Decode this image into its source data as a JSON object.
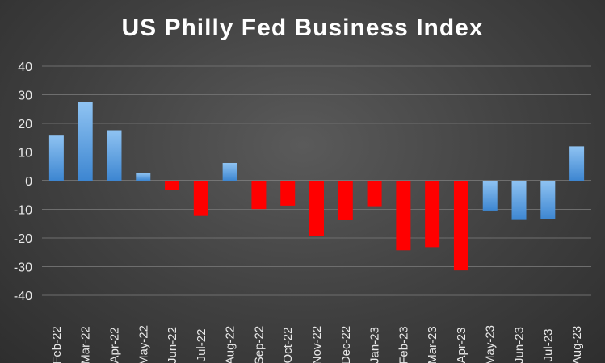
{
  "chart_data": {
    "type": "bar",
    "title": "US Philly Fed Business Index",
    "xlabel": "",
    "ylabel": "",
    "ylim": [
      -40,
      40
    ],
    "yticks": [
      40,
      30,
      20,
      10,
      0,
      -10,
      -20,
      -30,
      -40
    ],
    "grid": true,
    "legend": "none",
    "categories": [
      "Feb-22",
      "Mar-22",
      "Apr-22",
      "May-22",
      "Jun-22",
      "Jul-22",
      "Aug-22",
      "Sep-22",
      "Oct-22",
      "Nov-22",
      "Dec-22",
      "Jan-23",
      "Feb-23",
      "Mar-23",
      "Apr-23",
      "May-23",
      "Jun-23",
      "Jul-23",
      "Aug-23"
    ],
    "values": [
      16.0,
      27.4,
      17.6,
      2.6,
      -3.3,
      -12.3,
      6.2,
      -9.9,
      -8.7,
      -19.4,
      -13.8,
      -8.9,
      -24.3,
      -23.2,
      -31.3,
      -10.4,
      -13.7,
      -13.5,
      12.0
    ],
    "colors": [
      "blue",
      "blue",
      "blue",
      "blue",
      "red",
      "red",
      "blue",
      "red",
      "red",
      "red",
      "red",
      "red",
      "red",
      "red",
      "red",
      "blue",
      "blue",
      "blue",
      "blue"
    ]
  },
  "palette": {
    "blue_top": "#8fc3f2",
    "blue_bottom": "#3d86d1",
    "red": "#ff0000"
  }
}
